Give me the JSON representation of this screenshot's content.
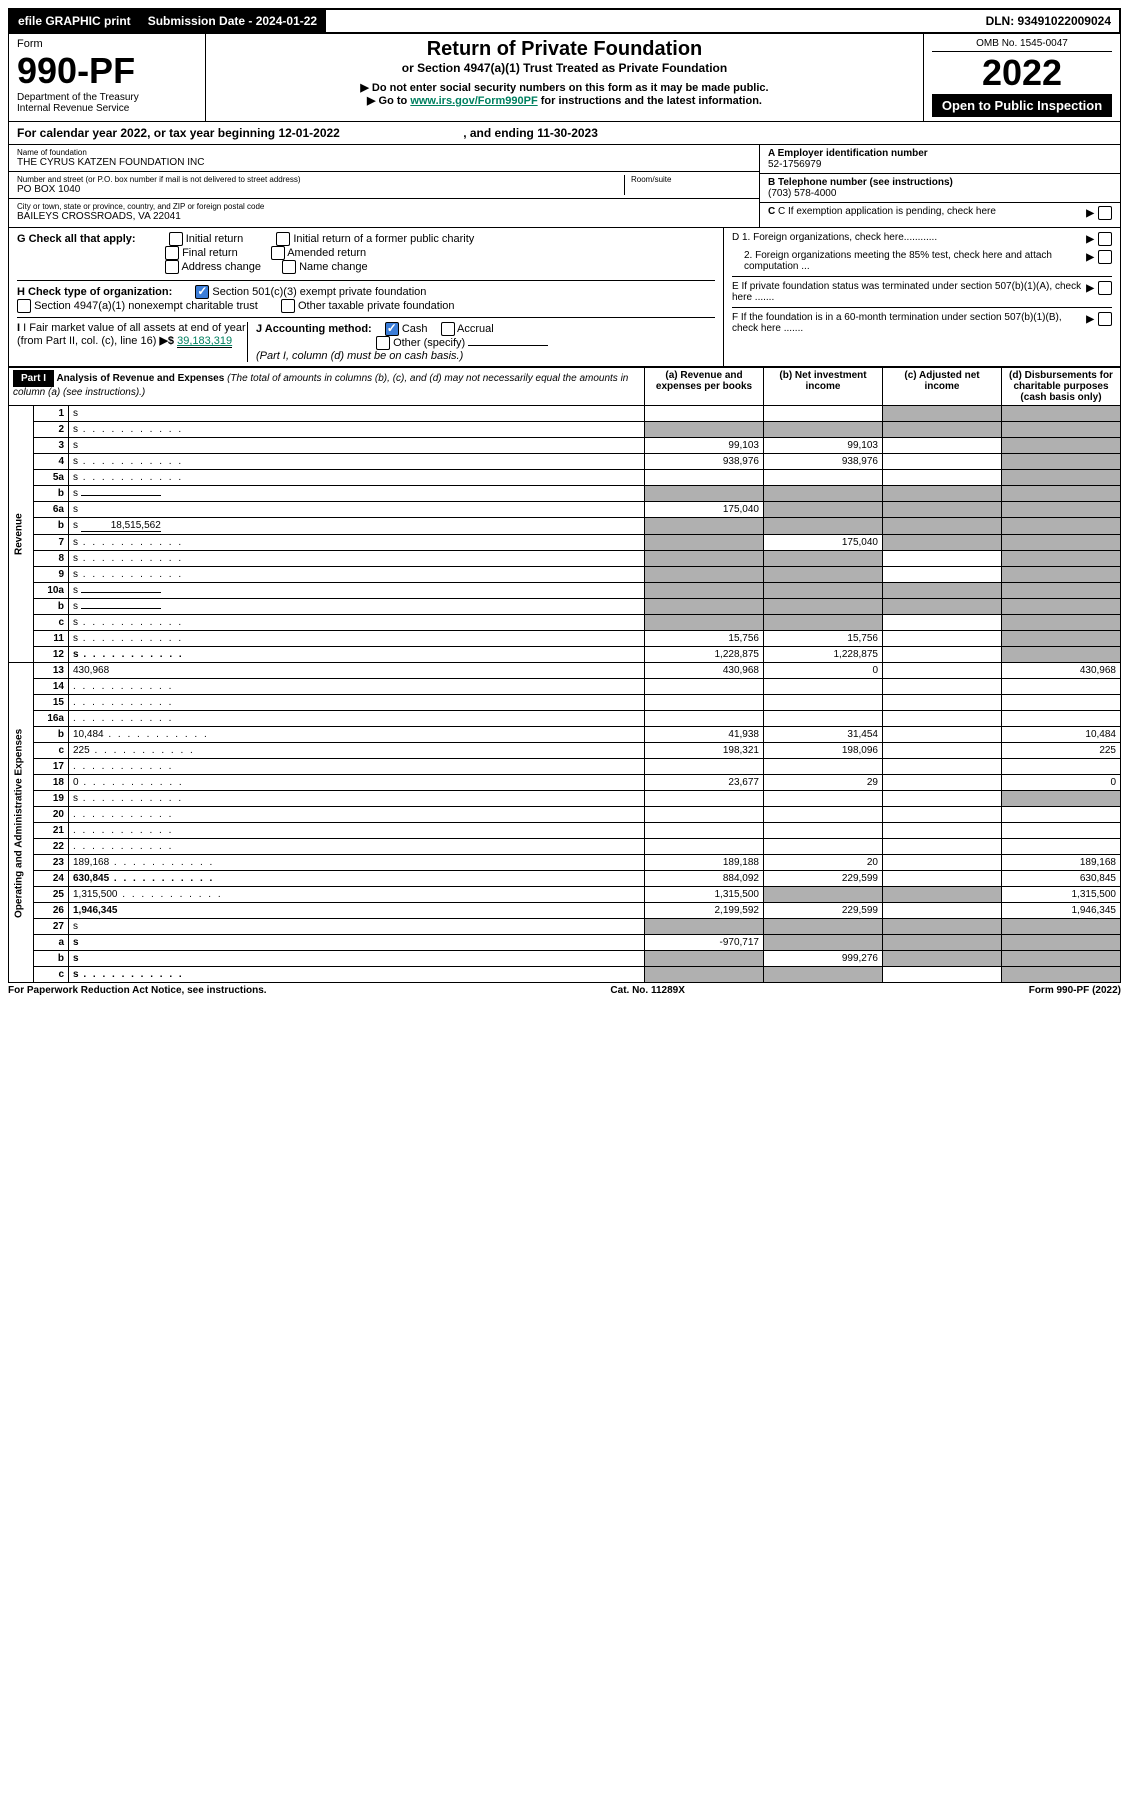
{
  "topbar": {
    "efile": "efile GRAPHIC print",
    "submission_label": "Submission Date - 2024-01-22",
    "dln": "DLN: 93491022009024"
  },
  "header": {
    "form_word": "Form",
    "form_number": "990-PF",
    "dept": "Department of the Treasury",
    "irs": "Internal Revenue Service",
    "title": "Return of Private Foundation",
    "subtitle": "or Section 4947(a)(1) Trust Treated as Private Foundation",
    "warn": "▶ Do not enter social security numbers on this form as it may be made public.",
    "goto_pre": "▶ Go to ",
    "goto_link": "www.irs.gov/Form990PF",
    "goto_post": " for instructions and the latest information.",
    "omb": "OMB No. 1545-0047",
    "year": "2022",
    "open": "Open to Public Inspection"
  },
  "calyear": {
    "text_pre": "For calendar year 2022, or tax year beginning ",
    "begin": "12-01-2022",
    "text_mid": " , and ending ",
    "end": "11-30-2023"
  },
  "id": {
    "name_label": "Name of foundation",
    "name": "THE CYRUS KATZEN FOUNDATION INC",
    "addr_label": "Number and street (or P.O. box number if mail is not delivered to street address)",
    "addr": "PO BOX 1040",
    "room_label": "Room/suite",
    "room": "",
    "city_label": "City or town, state or province, country, and ZIP or foreign postal code",
    "city": "BAILEYS CROSSROADS, VA  22041",
    "a_label": "A Employer identification number",
    "a_val": "52-1756979",
    "b_label": "B Telephone number (see instructions)",
    "b_val": "(703) 578-4000",
    "c_label": "C If exemption application is pending, check here",
    "d1": "D 1. Foreign organizations, check here............",
    "d2": "2. Foreign organizations meeting the 85% test, check here and attach computation ...",
    "e": "E  If private foundation status was terminated under section 507(b)(1)(A), check here .......",
    "f": "F  If the foundation is in a 60-month termination under section 507(b)(1)(B), check here .......",
    "g_label": "G Check all that apply:",
    "g_opts": [
      "Initial return",
      "Initial return of a former public charity",
      "Final return",
      "Amended return",
      "Address change",
      "Name change"
    ],
    "h_label": "H Check type of organization:",
    "h_opt1": "Section 501(c)(3) exempt private foundation",
    "h_opt2": "Section 4947(a)(1) nonexempt charitable trust",
    "h_opt3": "Other taxable private foundation",
    "i_label": "I Fair market value of all assets at end of year (from Part II, col. (c), line 16)",
    "i_val": "39,183,319",
    "j_label": "J Accounting method:",
    "j_opts": [
      "Cash",
      "Accrual",
      "Other (specify)"
    ],
    "j_note": "(Part I, column (d) must be on cash basis.)"
  },
  "part1": {
    "label": "Part I",
    "title": "Analysis of Revenue and Expenses",
    "title_note": "(The total of amounts in columns (b), (c), and (d) may not necessarily equal the amounts in column (a) (see instructions).)",
    "col_a": "(a) Revenue and expenses per books",
    "col_b": "(b) Net investment income",
    "col_c": "(c) Adjusted net income",
    "col_d": "(d) Disbursements for charitable purposes (cash basis only)",
    "revenue_label": "Revenue",
    "expenses_label": "Operating and Administrative Expenses"
  },
  "rows": [
    {
      "n": "1",
      "d": "s",
      "a": "",
      "b": "",
      "c": "s"
    },
    {
      "n": "2",
      "d": "s",
      "a": "s",
      "b": "s",
      "c": "s",
      "dots": true
    },
    {
      "n": "3",
      "d": "s",
      "a": "99,103",
      "b": "99,103",
      "c": ""
    },
    {
      "n": "4",
      "d": "s",
      "a": "938,976",
      "b": "938,976",
      "c": "",
      "dots": true
    },
    {
      "n": "5a",
      "d": "s",
      "a": "",
      "b": "",
      "c": "",
      "dots": true
    },
    {
      "n": "b",
      "d": "s",
      "a": "s",
      "b": "s",
      "c": "s",
      "sub": ""
    },
    {
      "n": "6a",
      "d": "s",
      "a": "175,040",
      "b": "s",
      "c": "s"
    },
    {
      "n": "b",
      "d": "s",
      "a": "s",
      "b": "s",
      "c": "s",
      "sub": "18,515,562"
    },
    {
      "n": "7",
      "d": "s",
      "a": "s",
      "b": "175,040",
      "c": "s",
      "dots": true
    },
    {
      "n": "8",
      "d": "s",
      "a": "s",
      "b": "s",
      "c": "",
      "dots": true
    },
    {
      "n": "9",
      "d": "s",
      "a": "s",
      "b": "s",
      "c": "",
      "dots": true
    },
    {
      "n": "10a",
      "d": "s",
      "a": "s",
      "b": "s",
      "c": "s",
      "sub": ""
    },
    {
      "n": "b",
      "d": "s",
      "a": "s",
      "b": "s",
      "c": "s",
      "sub": "",
      "dots": true
    },
    {
      "n": "c",
      "d": "s",
      "a": "s",
      "b": "s",
      "c": "",
      "dots": true
    },
    {
      "n": "11",
      "d": "s",
      "a": "15,756",
      "b": "15,756",
      "c": "",
      "dots": true
    },
    {
      "n": "12",
      "d": "s",
      "a": "1,228,875",
      "b": "1,228,875",
      "c": "",
      "bold": true,
      "dots": true
    },
    {
      "n": "13",
      "d": "430,968",
      "a": "430,968",
      "b": "0",
      "c": ""
    },
    {
      "n": "14",
      "d": "",
      "a": "",
      "b": "",
      "c": "",
      "dots": true
    },
    {
      "n": "15",
      "d": "",
      "a": "",
      "b": "",
      "c": "",
      "dots": true
    },
    {
      "n": "16a",
      "d": "",
      "a": "",
      "b": "",
      "c": "",
      "dots": true
    },
    {
      "n": "b",
      "d": "10,484",
      "a": "41,938",
      "b": "31,454",
      "c": "",
      "dots": true
    },
    {
      "n": "c",
      "d": "225",
      "a": "198,321",
      "b": "198,096",
      "c": "",
      "dots": true
    },
    {
      "n": "17",
      "d": "",
      "a": "",
      "b": "",
      "c": "",
      "dots": true
    },
    {
      "n": "18",
      "d": "0",
      "a": "23,677",
      "b": "29",
      "c": "",
      "dots": true
    },
    {
      "n": "19",
      "d": "s",
      "a": "",
      "b": "",
      "c": "",
      "dots": true
    },
    {
      "n": "20",
      "d": "",
      "a": "",
      "b": "",
      "c": "",
      "dots": true
    },
    {
      "n": "21",
      "d": "",
      "a": "",
      "b": "",
      "c": "",
      "dots": true
    },
    {
      "n": "22",
      "d": "",
      "a": "",
      "b": "",
      "c": "",
      "dots": true
    },
    {
      "n": "23",
      "d": "189,168",
      "a": "189,188",
      "b": "20",
      "c": "",
      "dots": true
    },
    {
      "n": "24",
      "d": "630,845",
      "a": "884,092",
      "b": "229,599",
      "c": "",
      "bold": true,
      "dots": true
    },
    {
      "n": "25",
      "d": "1,315,500",
      "a": "1,315,500",
      "b": "s",
      "c": "s",
      "dots": true
    },
    {
      "n": "26",
      "d": "1,946,345",
      "a": "2,199,592",
      "b": "229,599",
      "c": "",
      "bold": true
    },
    {
      "n": "27",
      "d": "s",
      "a": "s",
      "b": "s",
      "c": "s"
    },
    {
      "n": "a",
      "d": "s",
      "a": "-970,717",
      "b": "s",
      "c": "s",
      "bold": true
    },
    {
      "n": "b",
      "d": "s",
      "a": "s",
      "b": "999,276",
      "c": "s",
      "bold": true
    },
    {
      "n": "c",
      "d": "s",
      "a": "s",
      "b": "s",
      "c": "",
      "bold": true,
      "dots": true
    }
  ],
  "footer": {
    "left": "For Paperwork Reduction Act Notice, see instructions.",
    "center": "Cat. No. 11289X",
    "right": "Form 990-PF (2022)"
  }
}
